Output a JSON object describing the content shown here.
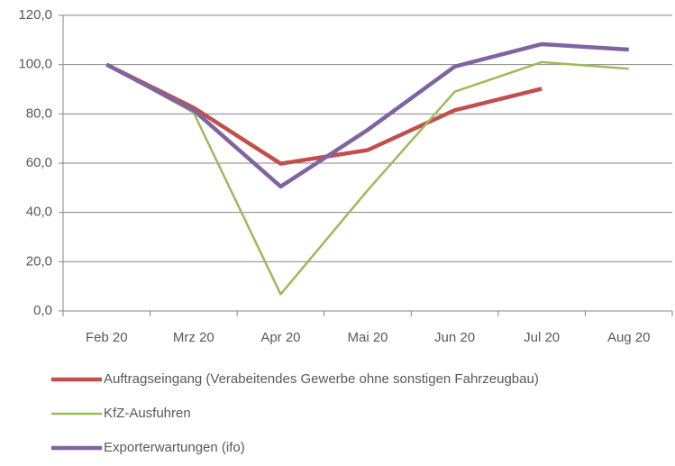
{
  "chart_data": {
    "type": "line",
    "categories": [
      "Feb 20",
      "Mrz 20",
      "Apr 20",
      "Mai 20",
      "Jun 20",
      "Jul 20",
      "Aug 20"
    ],
    "series": [
      {
        "name": "Auftragseingang (Verabeitendes Gewerbe ohne sonstigen Fahrzeugbau)",
        "color": "#c0504d",
        "values": [
          100,
          82.5,
          59.8,
          65.3,
          81.5,
          90.2,
          null
        ]
      },
      {
        "name": "KfZ-Ausfuhren",
        "color": "#9bbb59",
        "values": [
          100,
          80.5,
          6.8,
          49,
          89,
          101,
          98.3
        ]
      },
      {
        "name": "Exporterwartungen (ifo)",
        "color": "#8064a2",
        "values": [
          100,
          81.5,
          50.5,
          73.5,
          99.2,
          108.3,
          106.1
        ]
      }
    ],
    "ylim": [
      0,
      120
    ],
    "yticks": [
      {
        "value": 0,
        "label": "0,0"
      },
      {
        "value": 20,
        "label": "20,0"
      },
      {
        "value": 40,
        "label": "40,0"
      },
      {
        "value": 60,
        "label": "60,0"
      },
      {
        "value": 80,
        "label": "80,0"
      },
      {
        "value": 100,
        "label": "100,0"
      },
      {
        "value": 120,
        "label": "120,0"
      }
    ],
    "grid": true,
    "legend": "bottom"
  }
}
